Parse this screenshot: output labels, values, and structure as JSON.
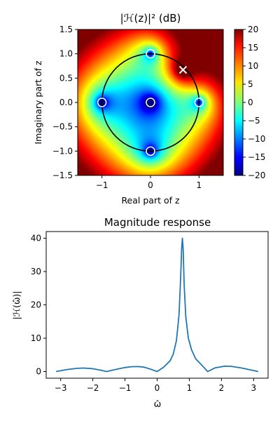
{
  "chart_data": [
    {
      "type": "heatmap",
      "title": "|ℋ(z)|² (dB)",
      "xlabel": "Real part of z",
      "ylabel": "Imaginary part of z",
      "xlim": [
        -1.5,
        1.5
      ],
      "ylim": [
        -1.5,
        1.5
      ],
      "xticks": [
        "−1",
        "0",
        "1"
      ],
      "xtick_values": [
        -1,
        0,
        1
      ],
      "yticks": [
        "1.5",
        "1.0",
        "0.5",
        "0.0",
        "−0.5",
        "−1.0",
        "−1.5"
      ],
      "ytick_values": [
        1.5,
        1.0,
        0.5,
        0.0,
        -0.5,
        -1.0,
        -1.5
      ],
      "colormap": "jet",
      "colorbar": {
        "range": [
          -20,
          20
        ],
        "ticks": [
          "20",
          "15",
          "10",
          "5",
          "0",
          "−5",
          "−10",
          "−15",
          "−20"
        ],
        "tick_values": [
          20,
          15,
          10,
          5,
          0,
          -5,
          -10,
          -15,
          -20
        ]
      },
      "unit_circle": true,
      "zeros": [
        {
          "re": 0,
          "im": 1
        },
        {
          "re": 0,
          "im": -1
        },
        {
          "re": 1,
          "im": 0
        },
        {
          "re": -1,
          "im": 0
        },
        {
          "re": 0,
          "im": 0
        }
      ],
      "poles": [
        {
          "re": 0.67,
          "im": 0.67
        }
      ]
    },
    {
      "type": "line",
      "title": "Magnitude response",
      "xlabel": "ω̂",
      "ylabel": "|ℋ(ω̂)|",
      "xlim": [
        -3.45,
        3.45
      ],
      "ylim": [
        -2,
        42
      ],
      "xticks": [
        "−3",
        "−2",
        "−1",
        "0",
        "1",
        "2",
        "3"
      ],
      "xtick_values": [
        -3,
        -2,
        -1,
        0,
        1,
        2,
        3
      ],
      "yticks": [
        "0",
        "10",
        "20",
        "30",
        "40"
      ],
      "ytick_values": [
        0,
        10,
        20,
        30,
        40
      ],
      "series": [
        {
          "color": "#1f77b4",
          "x": [
            -3.1416,
            -2.8,
            -2.5,
            -2.3,
            -2.0,
            -1.8,
            -1.5708,
            -1.3,
            -1.0,
            -0.8,
            -0.6,
            -0.4,
            -0.2,
            0.0,
            0.2,
            0.4,
            0.5,
            0.6,
            0.68,
            0.73,
            0.76,
            0.7854,
            0.81,
            0.84,
            0.89,
            0.97,
            1.07,
            1.2,
            1.4,
            1.5708,
            1.8,
            2.1,
            2.3,
            2.6,
            2.9,
            3.1416
          ],
          "y": [
            0.0,
            0.6,
            0.95,
            1.05,
            0.85,
            0.5,
            0.0,
            0.6,
            1.2,
            1.45,
            1.5,
            1.3,
            0.7,
            0.0,
            1.3,
            3.2,
            5.2,
            9.3,
            17.0,
            28.0,
            36.5,
            40.0,
            36.5,
            26.0,
            16.5,
            10.0,
            6.5,
            3.8,
            1.8,
            0.0,
            1.1,
            1.6,
            1.55,
            1.1,
            0.5,
            0.0
          ]
        }
      ]
    }
  ]
}
